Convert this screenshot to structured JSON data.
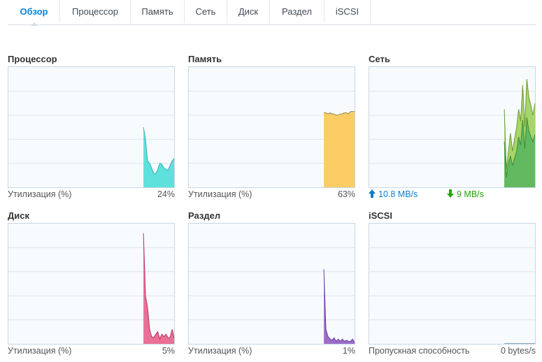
{
  "tabs": [
    {
      "id": "overview",
      "label": "Обзор",
      "active": true
    },
    {
      "id": "cpu",
      "label": "Процессор",
      "active": false
    },
    {
      "id": "memory",
      "label": "Память",
      "active": false
    },
    {
      "id": "network",
      "label": "Сеть",
      "active": false
    },
    {
      "id": "disk",
      "label": "Диск",
      "active": false
    },
    {
      "id": "volume",
      "label": "Раздел",
      "active": false
    },
    {
      "id": "iscsi",
      "label": "iSCSI",
      "active": false
    }
  ],
  "panels": {
    "cpu": {
      "title": "Процессор",
      "footer_label": "Утилизация (%)",
      "footer_value": "24%",
      "color": "#5ee1dc",
      "line_color": "#2fb6b0"
    },
    "memory": {
      "title": "Память",
      "footer_label": "Утилизация (%)",
      "footer_value": "63%",
      "color": "#fbcd64",
      "line_color": "#8c8a5a"
    },
    "network": {
      "title": "Сеть",
      "up_value": "10.8 MB/s",
      "down_value": "9 MB/s",
      "up_color": "#0f7cc9",
      "down_color": "#2aa10f",
      "color_up": "#a6d669",
      "color_down": "#62b960",
      "up_icon": "arrow-up-icon",
      "down_icon": "arrow-down-icon"
    },
    "disk": {
      "title": "Диск",
      "footer_label": "Утилизация (%)",
      "footer_value": "5%",
      "color": "#ec6f95",
      "line_color": "#b83060"
    },
    "volume": {
      "title": "Раздел",
      "footer_label": "Утилизация (%)",
      "footer_value": "1%",
      "color": "#9b6ec8",
      "line_color": "#6a3f9c"
    },
    "iscsi": {
      "title": "iSCSI",
      "footer_label": "Пропускная способность",
      "footer_value": "0 bytes/s",
      "color": "#8aa8c0"
    }
  },
  "chart_data": [
    {
      "id": "cpu",
      "type": "area",
      "ylim": [
        0,
        100
      ],
      "grid": true,
      "values": [
        null,
        null,
        null,
        null,
        null,
        null,
        null,
        null,
        null,
        null,
        null,
        null,
        null,
        null,
        null,
        null,
        null,
        null,
        null,
        null,
        null,
        null,
        null,
        null,
        null,
        null,
        null,
        null,
        null,
        null,
        null,
        null,
        null,
        null,
        null,
        null,
        null,
        null,
        null,
        null,
        null,
        null,
        null,
        null,
        null,
        null,
        null,
        null,
        null,
        null,
        null,
        null,
        null,
        null,
        null,
        null,
        null,
        null,
        null,
        null,
        null,
        null,
        null,
        null,
        null,
        null,
        50,
        40,
        22,
        20,
        16,
        12,
        11,
        15,
        20,
        19,
        16,
        15,
        14,
        18,
        22,
        24
      ]
    },
    {
      "id": "memory",
      "type": "area",
      "ylim": [
        0,
        100
      ],
      "grid": true,
      "values": [
        null,
        null,
        null,
        null,
        null,
        null,
        null,
        null,
        null,
        null,
        null,
        null,
        null,
        null,
        null,
        null,
        null,
        null,
        null,
        null,
        null,
        null,
        null,
        null,
        null,
        null,
        null,
        null,
        null,
        null,
        null,
        null,
        null,
        null,
        null,
        null,
        null,
        null,
        null,
        null,
        null,
        null,
        null,
        null,
        null,
        null,
        null,
        null,
        null,
        null,
        null,
        null,
        null,
        null,
        null,
        null,
        null,
        null,
        null,
        null,
        null,
        null,
        null,
        null,
        null,
        null,
        62,
        62,
        61,
        62,
        61,
        61,
        60,
        60,
        61,
        61,
        62,
        62,
        61,
        63,
        63,
        63
      ]
    },
    {
      "id": "network",
      "type": "area",
      "ylim": [
        0,
        100
      ],
      "grid": true,
      "series": [
        {
          "values": [
            null,
            null,
            null,
            null,
            null,
            null,
            null,
            null,
            null,
            null,
            null,
            null,
            null,
            null,
            null,
            null,
            null,
            null,
            null,
            null,
            null,
            null,
            null,
            null,
            null,
            null,
            null,
            null,
            null,
            null,
            null,
            null,
            null,
            null,
            null,
            null,
            null,
            null,
            null,
            null,
            null,
            null,
            null,
            null,
            null,
            null,
            null,
            null,
            null,
            null,
            null,
            null,
            null,
            null,
            null,
            null,
            null,
            null,
            null,
            null,
            null,
            null,
            null,
            null,
            null,
            null,
            65,
            15,
            30,
            45,
            30,
            40,
            50,
            65,
            55,
            85,
            50,
            90,
            75,
            68,
            60,
            70
          ]
        },
        {
          "values": [
            null,
            null,
            null,
            null,
            null,
            null,
            null,
            null,
            null,
            null,
            null,
            null,
            null,
            null,
            null,
            null,
            null,
            null,
            null,
            null,
            null,
            null,
            null,
            null,
            null,
            null,
            null,
            null,
            null,
            null,
            null,
            null,
            null,
            null,
            null,
            null,
            null,
            null,
            null,
            null,
            null,
            null,
            null,
            null,
            null,
            null,
            null,
            null,
            null,
            null,
            null,
            null,
            null,
            null,
            null,
            null,
            null,
            null,
            null,
            null,
            null,
            null,
            null,
            null,
            null,
            null,
            38,
            8,
            20,
            26,
            18,
            24,
            30,
            42,
            35,
            56,
            32,
            58,
            47,
            42,
            38,
            44
          ]
        }
      ]
    },
    {
      "id": "disk",
      "type": "area",
      "ylim": [
        0,
        100
      ],
      "grid": true,
      "values": [
        null,
        null,
        null,
        null,
        null,
        null,
        null,
        null,
        null,
        null,
        null,
        null,
        null,
        null,
        null,
        null,
        null,
        null,
        null,
        null,
        null,
        null,
        null,
        null,
        null,
        null,
        null,
        null,
        null,
        null,
        null,
        null,
        null,
        null,
        null,
        null,
        null,
        null,
        null,
        null,
        null,
        null,
        null,
        null,
        null,
        null,
        null,
        null,
        null,
        null,
        null,
        null,
        null,
        null,
        null,
        null,
        null,
        null,
        null,
        null,
        null,
        null,
        null,
        null,
        null,
        null,
        92,
        40,
        30,
        12,
        6,
        5,
        8,
        10,
        4,
        8,
        6,
        8,
        5,
        5,
        12,
        5
      ]
    },
    {
      "id": "volume",
      "type": "area",
      "ylim": [
        0,
        100
      ],
      "grid": true,
      "values": [
        null,
        null,
        null,
        null,
        null,
        null,
        null,
        null,
        null,
        null,
        null,
        null,
        null,
        null,
        null,
        null,
        null,
        null,
        null,
        null,
        null,
        null,
        null,
        null,
        null,
        null,
        null,
        null,
        null,
        null,
        null,
        null,
        null,
        null,
        null,
        null,
        null,
        null,
        null,
        null,
        null,
        null,
        null,
        null,
        null,
        null,
        null,
        null,
        null,
        null,
        null,
        null,
        null,
        null,
        null,
        null,
        null,
        null,
        null,
        null,
        null,
        null,
        null,
        null,
        null,
        null,
        62,
        12,
        6,
        4,
        3,
        5,
        2,
        4,
        2,
        4,
        2,
        3,
        2,
        2,
        4,
        1
      ]
    },
    {
      "id": "iscsi",
      "type": "area",
      "ylim": [
        0,
        100
      ],
      "grid": true,
      "values": [
        null,
        null,
        null,
        null,
        null,
        null,
        null,
        null,
        null,
        null,
        null,
        null,
        null,
        null,
        null,
        null,
        null,
        null,
        null,
        null,
        null,
        null,
        null,
        null,
        null,
        null,
        null,
        null,
        null,
        null,
        null,
        null,
        null,
        null,
        null,
        null,
        null,
        null,
        null,
        null,
        null,
        null,
        null,
        null,
        null,
        null,
        null,
        null,
        null,
        null,
        null,
        null,
        null,
        null,
        null,
        null,
        null,
        null,
        null,
        null,
        null,
        null,
        null,
        null,
        null,
        null,
        0,
        0,
        0,
        0,
        0,
        0,
        0,
        0,
        0,
        0,
        0,
        0,
        0,
        0,
        0,
        0
      ]
    }
  ]
}
